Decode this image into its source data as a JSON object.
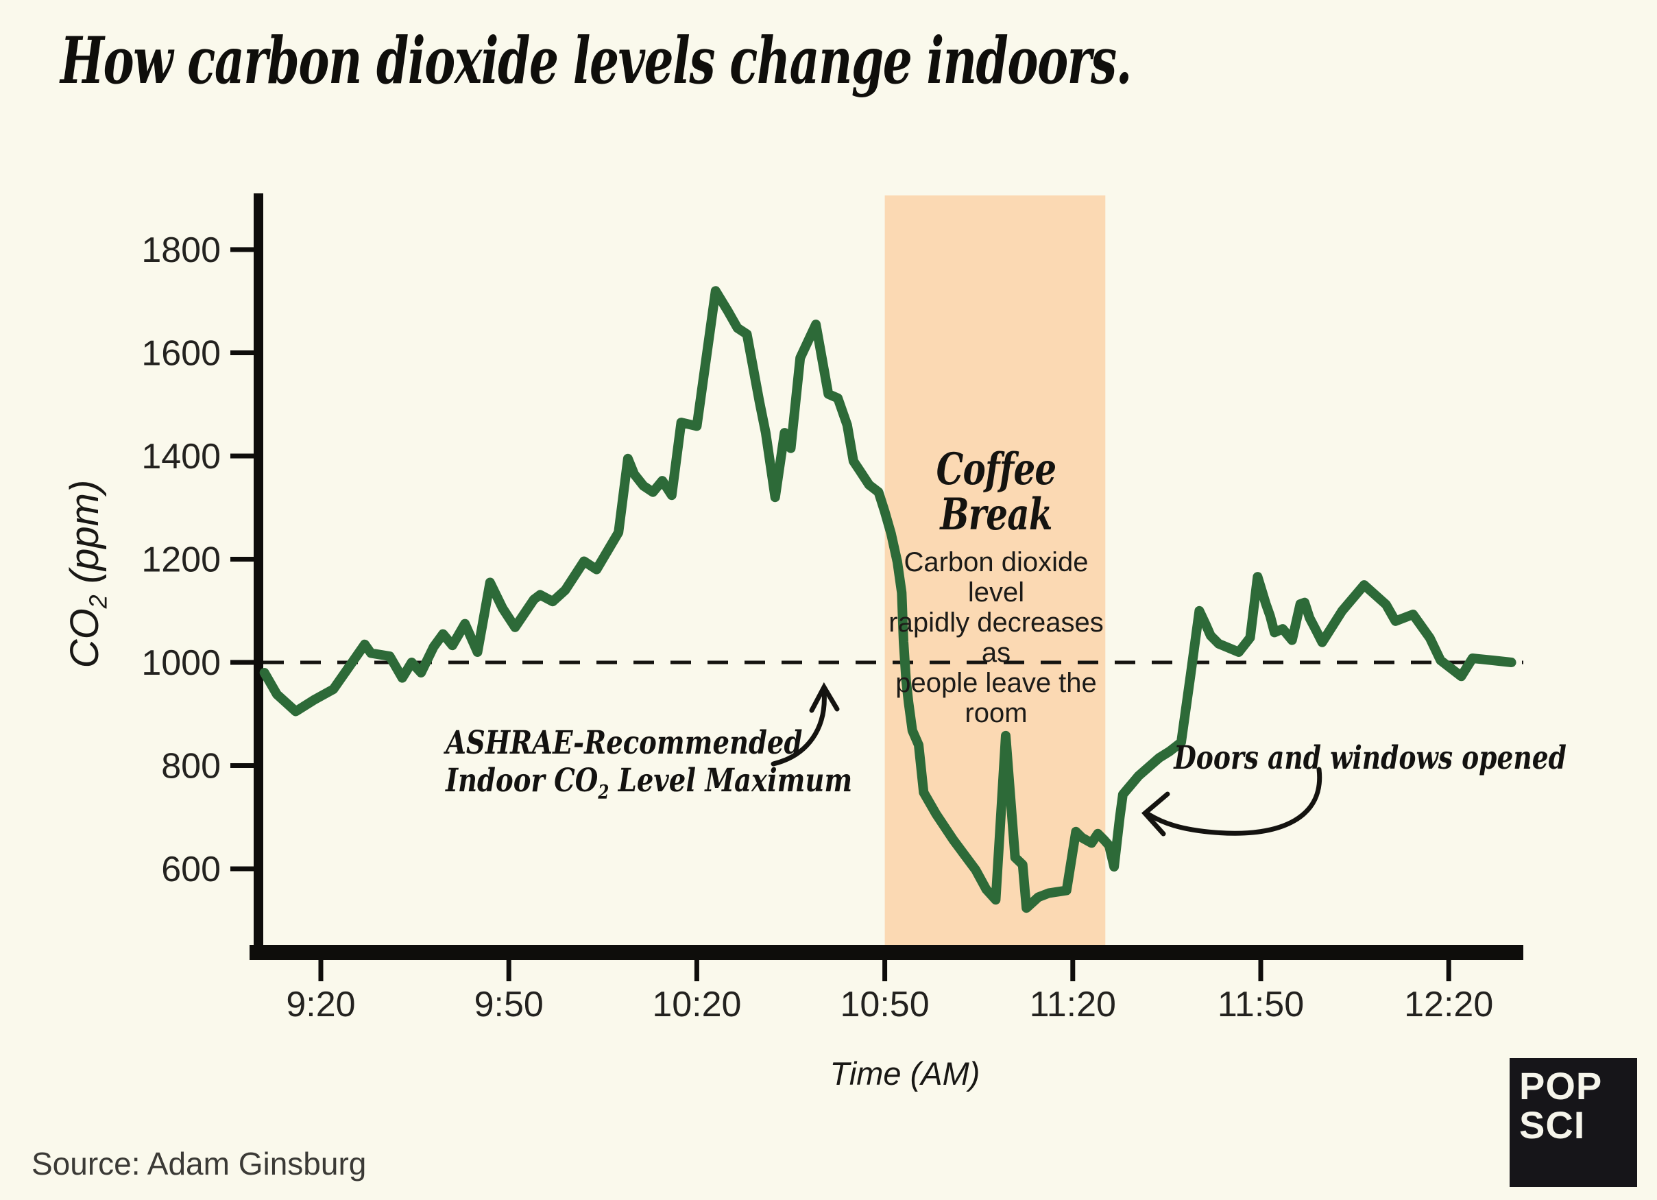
{
  "page": {
    "title": "How carbon dioxide levels change indoors.",
    "background_color": "#faf9ec",
    "text_color": "#141310"
  },
  "chart_data": {
    "type": "line",
    "title": "How carbon dioxide levels change indoors.",
    "xlabel": "Time (AM)",
    "ylabel": "CO2 (ppm)",
    "ylabel_parts": {
      "base": "CO",
      "subscript": "2",
      "unit": " (ppm)"
    },
    "x_unit": "minutes after 9:00 AM",
    "xlim": [
      10,
      212
    ],
    "ylim": [
      440,
      1905
    ],
    "grid": false,
    "legend": false,
    "line_color": "#2d6a38",
    "x_ticks": [
      {
        "t": 20,
        "label": "9:20"
      },
      {
        "t": 50,
        "label": "9:50"
      },
      {
        "t": 80,
        "label": "10:20"
      },
      {
        "t": 110,
        "label": "10:50"
      },
      {
        "t": 140,
        "label": "11:20"
      },
      {
        "t": 170,
        "label": "11:50"
      },
      {
        "t": 200,
        "label": "12:20"
      }
    ],
    "y_ticks": [
      600,
      800,
      1000,
      1200,
      1400,
      1600,
      1800
    ],
    "threshold": {
      "value": 1000,
      "style": "dashed",
      "meaning": "ASHRAE-Recommended Indoor CO2 Level Maximum"
    },
    "coffee_break_band": {
      "t_range": [
        110,
        145.2
      ],
      "time_range_labels": [
        "10:50",
        "~11:25"
      ],
      "color": "#fbd9b3"
    },
    "series": [
      {
        "name": "CO2 (ppm)",
        "points": [
          [
            11,
            980
          ],
          [
            13,
            938
          ],
          [
            16,
            905
          ],
          [
            19,
            928
          ],
          [
            22,
            948
          ],
          [
            25,
            1000
          ],
          [
            27,
            1035
          ],
          [
            28,
            1018
          ],
          [
            31,
            1012
          ],
          [
            33,
            970
          ],
          [
            34.5,
            1000
          ],
          [
            36,
            980
          ],
          [
            38,
            1030
          ],
          [
            39.5,
            1055
          ],
          [
            41,
            1033
          ],
          [
            43,
            1075
          ],
          [
            45,
            1020
          ],
          [
            47,
            1155
          ],
          [
            49,
            1105
          ],
          [
            51,
            1068
          ],
          [
            54,
            1122
          ],
          [
            55,
            1131
          ],
          [
            57,
            1118
          ],
          [
            59,
            1140
          ],
          [
            62,
            1196
          ],
          [
            64,
            1180
          ],
          [
            67.5,
            1252
          ],
          [
            69,
            1395
          ],
          [
            70,
            1365
          ],
          [
            71.5,
            1342
          ],
          [
            73,
            1330
          ],
          [
            74.5,
            1352
          ],
          [
            76,
            1324
          ],
          [
            77.5,
            1465
          ],
          [
            80,
            1458
          ],
          [
            83,
            1720
          ],
          [
            85,
            1680
          ],
          [
            86.5,
            1648
          ],
          [
            88,
            1636
          ],
          [
            90,
            1505
          ],
          [
            91,
            1445
          ],
          [
            92.5,
            1320
          ],
          [
            94,
            1445
          ],
          [
            95,
            1415
          ],
          [
            96.5,
            1590
          ],
          [
            99,
            1655
          ],
          [
            101,
            1520
          ],
          [
            102.5,
            1512
          ],
          [
            104,
            1460
          ],
          [
            105,
            1390
          ],
          [
            106,
            1372
          ],
          [
            107.5,
            1344
          ],
          [
            109,
            1330
          ],
          [
            110,
            1292
          ],
          [
            111,
            1250
          ],
          [
            112,
            1195
          ],
          [
            112.7,
            1135
          ],
          [
            113,
            1040
          ],
          [
            113.4,
            965
          ],
          [
            113.8,
            922
          ],
          [
            114.4,
            868
          ],
          [
            115.4,
            840
          ],
          [
            116.2,
            748
          ],
          [
            118.2,
            706
          ],
          [
            121,
            655
          ],
          [
            124.5,
            598
          ],
          [
            126.2,
            560
          ],
          [
            127.7,
            540
          ],
          [
            129.3,
            858
          ],
          [
            130.8,
            622
          ],
          [
            132,
            608
          ],
          [
            132.6,
            524
          ],
          [
            134.5,
            545
          ],
          [
            136.2,
            553
          ],
          [
            139,
            558
          ],
          [
            140.5,
            672
          ],
          [
            141.5,
            660
          ],
          [
            143,
            650
          ],
          [
            144,
            668
          ],
          [
            145,
            656
          ],
          [
            145.8,
            645
          ],
          [
            146.6,
            604
          ],
          [
            147.5,
            700
          ],
          [
            148,
            744
          ],
          [
            150.5,
            780
          ],
          [
            153.8,
            815
          ],
          [
            155.5,
            828
          ],
          [
            157.3,
            845
          ],
          [
            158.8,
            975
          ],
          [
            160.2,
            1100
          ],
          [
            161.2,
            1074
          ],
          [
            162,
            1052
          ],
          [
            163.3,
            1036
          ],
          [
            166.5,
            1020
          ],
          [
            168.3,
            1048
          ],
          [
            169.5,
            1166
          ],
          [
            170.8,
            1114
          ],
          [
            171.5,
            1090
          ],
          [
            172.2,
            1058
          ],
          [
            173.5,
            1065
          ],
          [
            175,
            1043
          ],
          [
            176.3,
            1113
          ],
          [
            177,
            1116
          ],
          [
            177.8,
            1086
          ],
          [
            178.8,
            1063
          ],
          [
            179.8,
            1039
          ],
          [
            183,
            1100
          ],
          [
            186.5,
            1150
          ],
          [
            190,
            1112
          ],
          [
            191.5,
            1080
          ],
          [
            194.3,
            1093
          ],
          [
            197,
            1047
          ],
          [
            198.7,
            1004
          ],
          [
            202,
            973
          ],
          [
            203.8,
            1008
          ],
          [
            207,
            1004
          ],
          [
            210,
            1000
          ]
        ]
      }
    ]
  },
  "annotations": {
    "coffee_break": {
      "heading_line1": "Coffee",
      "heading_line2": "Break",
      "body_line1": "Carbon dioxide level",
      "body_line2": "rapidly decreases as",
      "body_line3": "people leave the room"
    },
    "ashrae": {
      "line1": "ASHRAE-Recommended",
      "line2_prefix": "Indoor CO",
      "line2_sub": "2",
      "line2_suffix": " Level Maximum"
    },
    "doors": {
      "label": "Doors and windows opened"
    }
  },
  "footer": {
    "source": "Source: Adam Ginsburg",
    "logo_line1": "POP",
    "logo_line2": "SCI"
  }
}
